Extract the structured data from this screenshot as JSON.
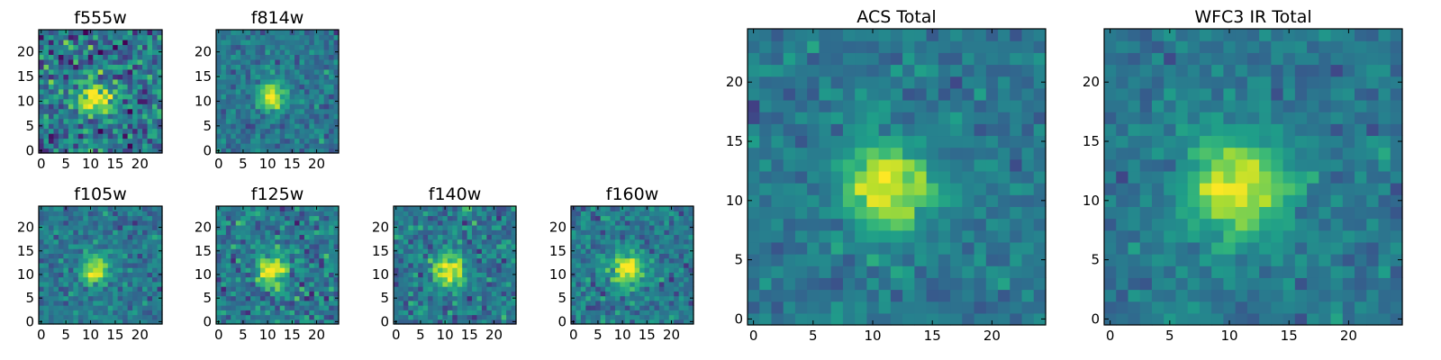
{
  "chart_data": [
    {
      "type": "heatmap",
      "title": "f555w",
      "x_ticks": [
        "0",
        "5",
        "10",
        "15",
        "20"
      ],
      "y_ticks": [
        "0",
        "5",
        "10",
        "15",
        "20"
      ],
      "xlim": [
        0,
        25
      ],
      "ylim": [
        0,
        25
      ],
      "source_peak": [
        11,
        11
      ],
      "source_spread": 2.4,
      "noise_level": 0.62,
      "colormap": "viridis"
    },
    {
      "type": "heatmap",
      "title": "f814w",
      "x_ticks": [
        "0",
        "5",
        "10",
        "15",
        "20"
      ],
      "y_ticks": [
        "0",
        "5",
        "10",
        "15",
        "20"
      ],
      "xlim": [
        0,
        25
      ],
      "ylim": [
        0,
        25
      ],
      "source_peak": [
        11,
        11
      ],
      "source_spread": 2.0,
      "noise_level": 0.3,
      "colormap": "viridis"
    },
    {
      "type": "heatmap",
      "title": "f105w",
      "x_ticks": [
        "0",
        "5",
        "10",
        "15",
        "20"
      ],
      "y_ticks": [
        "0",
        "5",
        "10",
        "15",
        "20"
      ],
      "xlim": [
        0,
        25
      ],
      "ylim": [
        0,
        25
      ],
      "source_peak": [
        11,
        11
      ],
      "source_spread": 2.0,
      "noise_level": 0.32,
      "colormap": "viridis"
    },
    {
      "type": "heatmap",
      "title": "f125w",
      "x_ticks": [
        "0",
        "5",
        "10",
        "15",
        "20"
      ],
      "y_ticks": [
        "0",
        "5",
        "10",
        "15",
        "20"
      ],
      "xlim": [
        0,
        25
      ],
      "ylim": [
        0,
        25
      ],
      "source_peak": [
        11,
        11
      ],
      "source_spread": 2.3,
      "noise_level": 0.45,
      "colormap": "viridis"
    },
    {
      "type": "heatmap",
      "title": "f140w",
      "x_ticks": [
        "0",
        "5",
        "10",
        "15",
        "20"
      ],
      "y_ticks": [
        "0",
        "5",
        "10",
        "15",
        "20"
      ],
      "xlim": [
        0,
        25
      ],
      "ylim": [
        0,
        25
      ],
      "source_peak": [
        11,
        11
      ],
      "source_spread": 2.5,
      "noise_level": 0.42,
      "colormap": "viridis"
    },
    {
      "type": "heatmap",
      "title": "f160w",
      "x_ticks": [
        "0",
        "5",
        "10",
        "15",
        "20"
      ],
      "y_ticks": [
        "0",
        "5",
        "10",
        "15",
        "20"
      ],
      "xlim": [
        0,
        25
      ],
      "ylim": [
        0,
        25
      ],
      "source_peak": [
        11,
        11
      ],
      "source_spread": 2.4,
      "noise_level": 0.36,
      "colormap": "viridis"
    },
    {
      "type": "heatmap",
      "title": "ACS Total",
      "x_ticks": [
        "0",
        "5",
        "10",
        "15",
        "20"
      ],
      "y_ticks": [
        "0",
        "5",
        "10",
        "15",
        "20"
      ],
      "xlim": [
        0,
        25
      ],
      "ylim": [
        0,
        25
      ],
      "source_peak": [
        11,
        11
      ],
      "source_spread": 2.6,
      "noise_level": 0.26,
      "colormap": "viridis"
    },
    {
      "type": "heatmap",
      "title": "WFC3 IR Total",
      "x_ticks": [
        "0",
        "5",
        "10",
        "15",
        "20"
      ],
      "y_ticks": [
        "0",
        "5",
        "10",
        "15",
        "20"
      ],
      "xlim": [
        0,
        25
      ],
      "ylim": [
        0,
        25
      ],
      "source_peak": [
        11,
        11
      ],
      "source_spread": 2.9,
      "noise_level": 0.24,
      "colormap": "viridis"
    }
  ]
}
